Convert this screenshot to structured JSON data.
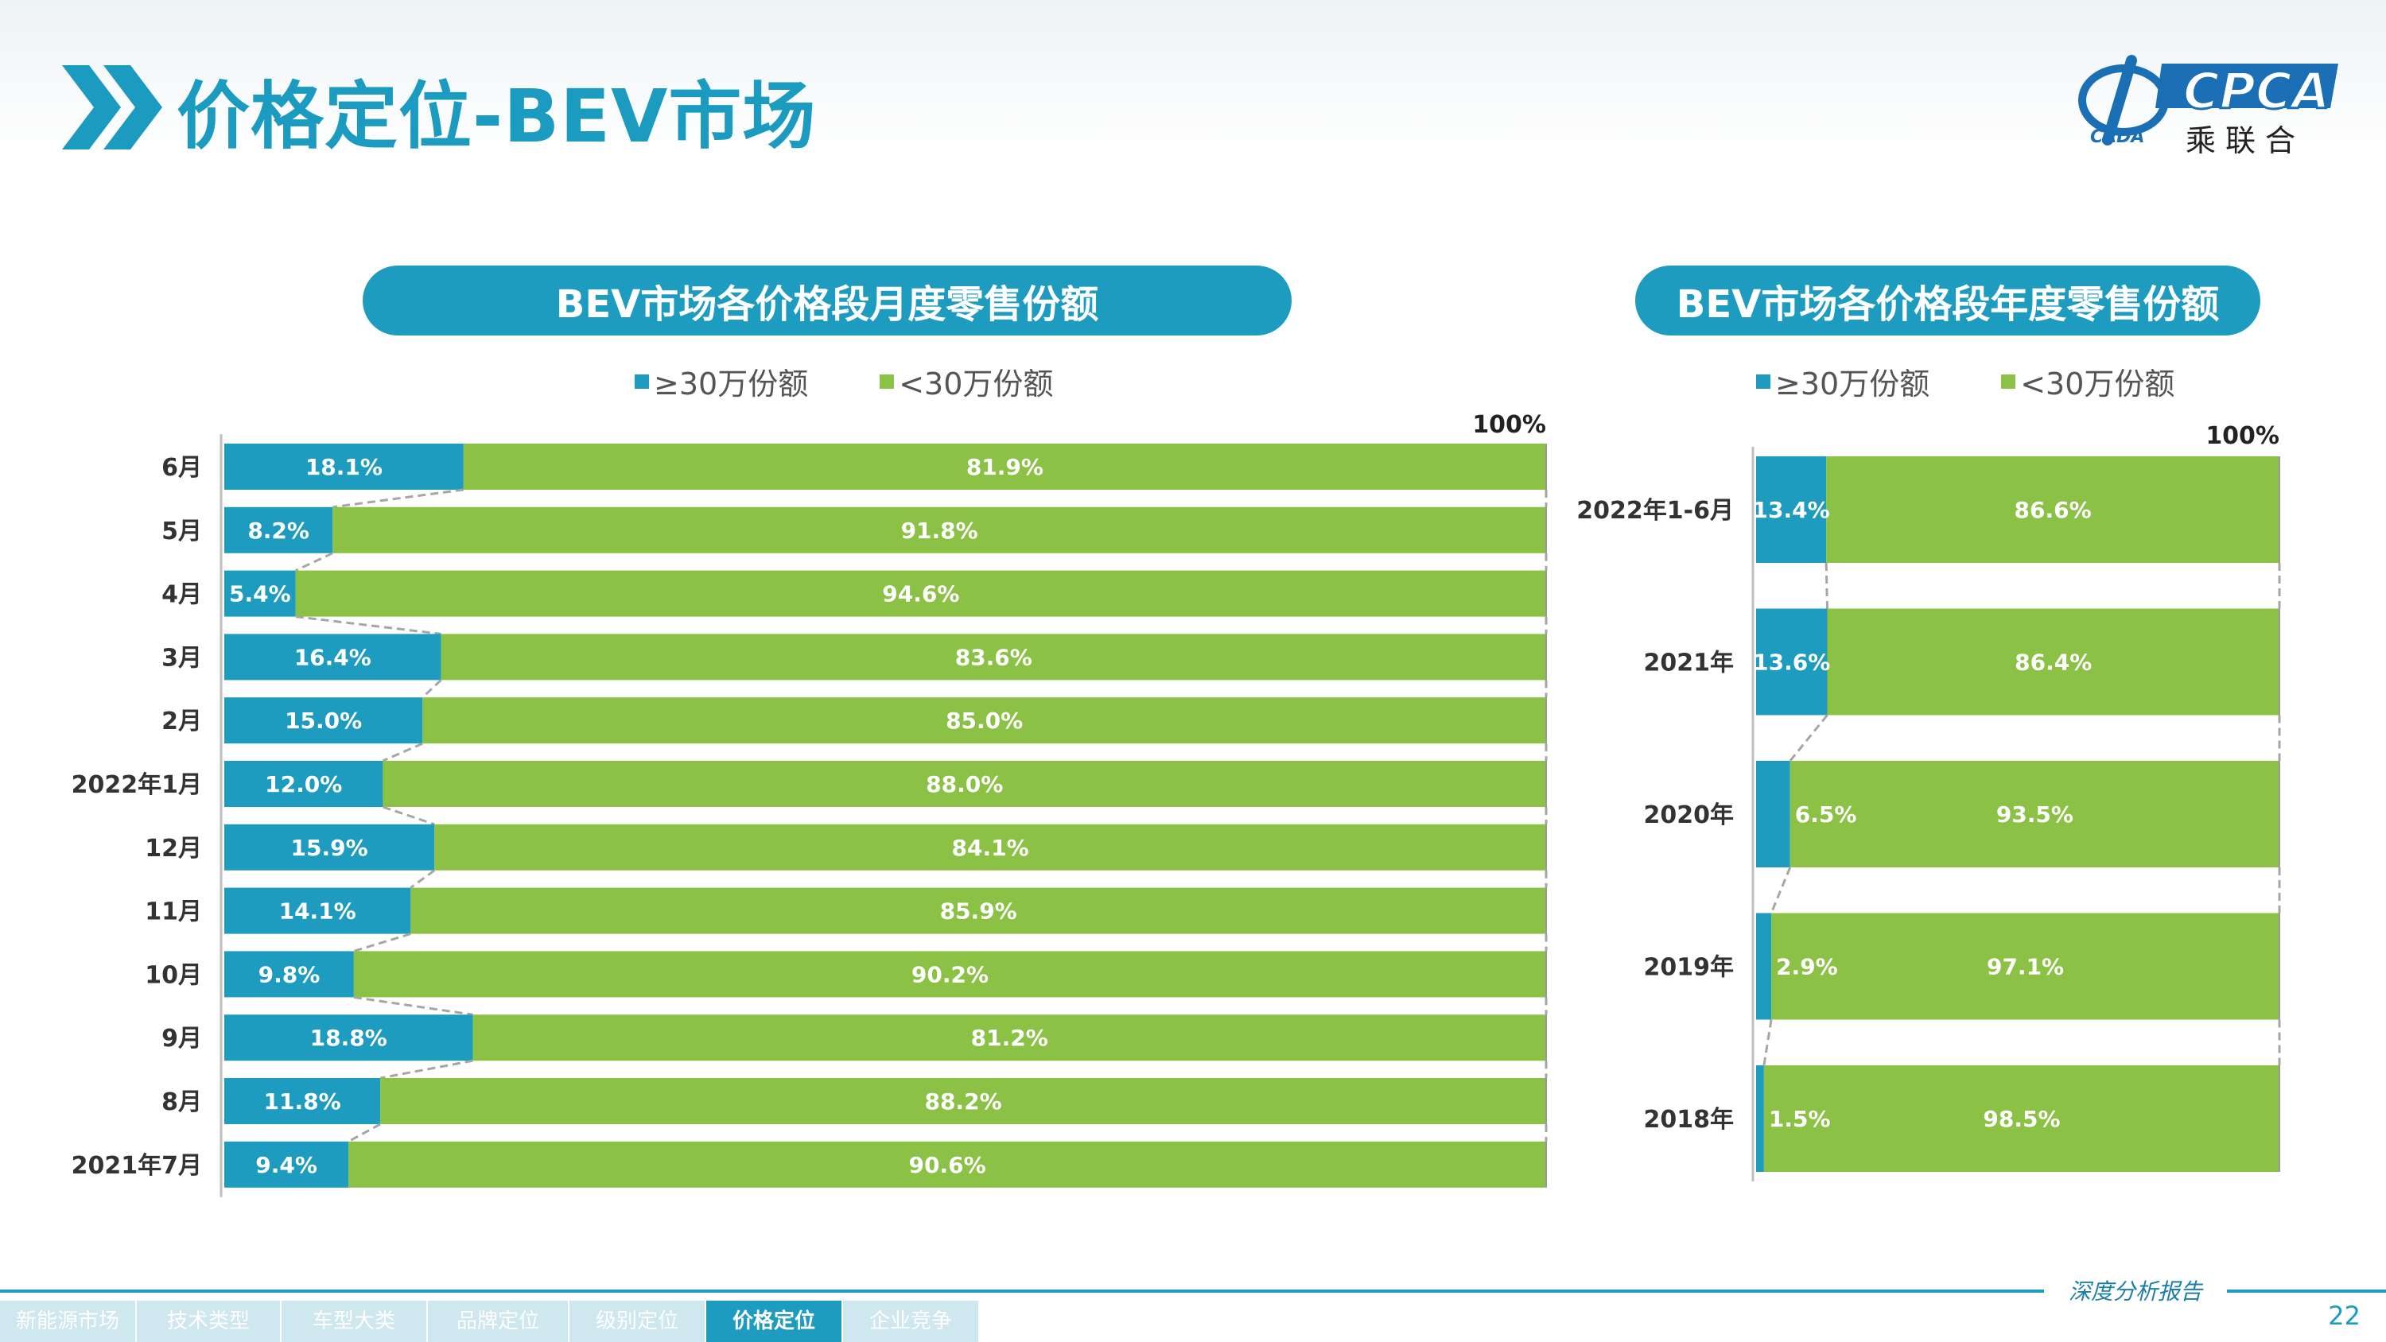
{
  "page": {
    "title": "价格定位-BEV市场",
    "logo_text_en": "CPCA",
    "logo_text_cn": "乘联合",
    "logo_text_small": "CADA",
    "footer_tag": "深度分析报告",
    "page_number": "22",
    "tabs": [
      {
        "label": "新能源市场",
        "active": false
      },
      {
        "label": "技术类型",
        "active": false
      },
      {
        "label": "车型大类",
        "active": false
      },
      {
        "label": "品牌定位",
        "active": false
      },
      {
        "label": "级别定位",
        "active": false
      },
      {
        "label": "价格定位",
        "active": true
      },
      {
        "label": "企业竞争",
        "active": false
      }
    ]
  },
  "colors": {
    "high": "#1e9cc0",
    "low": "#8bc145",
    "title": "#1a9bbf"
  },
  "chart_data": [
    {
      "type": "bar",
      "orientation": "horizontal-stacked-100",
      "title": "BEV市场各价格段月度零售份额",
      "total_label": "100%",
      "categories": [
        "6月",
        "5月",
        "4月",
        "3月",
        "2月",
        "2022年1月",
        "12月",
        "11月",
        "10月",
        "9月",
        "8月",
        "2021年7月"
      ],
      "series": [
        {
          "name": "≥30万份额",
          "values": [
            18.1,
            8.2,
            5.4,
            16.4,
            15.0,
            12.0,
            15.9,
            14.1,
            9.8,
            18.8,
            11.8,
            9.4
          ]
        },
        {
          "name": "<30万份额",
          "values": [
            81.9,
            91.8,
            94.6,
            83.6,
            85.0,
            88.0,
            84.1,
            85.9,
            90.2,
            81.2,
            88.2,
            90.6
          ]
        }
      ],
      "value_labels": [
        [
          "18.1%",
          "8.2%",
          "5.4%",
          "16.4%",
          "15.0%",
          "12.0%",
          "15.9%",
          "14.1%",
          "9.8%",
          "18.8%",
          "11.8%",
          "9.4%"
        ],
        [
          "81.9%",
          "91.8%",
          "94.6%",
          "83.6%",
          "85.0%",
          "88.0%",
          "84.1%",
          "85.9%",
          "90.2%",
          "81.2%",
          "88.2%",
          "90.6%"
        ]
      ],
      "xlim": [
        0,
        100
      ],
      "legend": "top"
    },
    {
      "type": "bar",
      "orientation": "horizontal-stacked-100",
      "title": "BEV市场各价格段年度零售份额",
      "total_label": "100%",
      "categories": [
        "2022年1-6月",
        "2021年",
        "2020年",
        "2019年",
        "2018年"
      ],
      "series": [
        {
          "name": "≥30万份额",
          "values": [
            13.4,
            13.6,
            6.5,
            2.9,
            1.5
          ]
        },
        {
          "name": "<30万份额",
          "values": [
            86.6,
            86.4,
            93.5,
            97.1,
            98.5
          ]
        }
      ],
      "value_labels": [
        [
          "13.4%",
          "13.6%",
          "6.5%",
          "2.9%",
          "1.5%"
        ],
        [
          "86.6%",
          "86.4%",
          "93.5%",
          "97.1%",
          "98.5%"
        ]
      ],
      "xlim": [
        0,
        100
      ],
      "legend": "top"
    }
  ]
}
